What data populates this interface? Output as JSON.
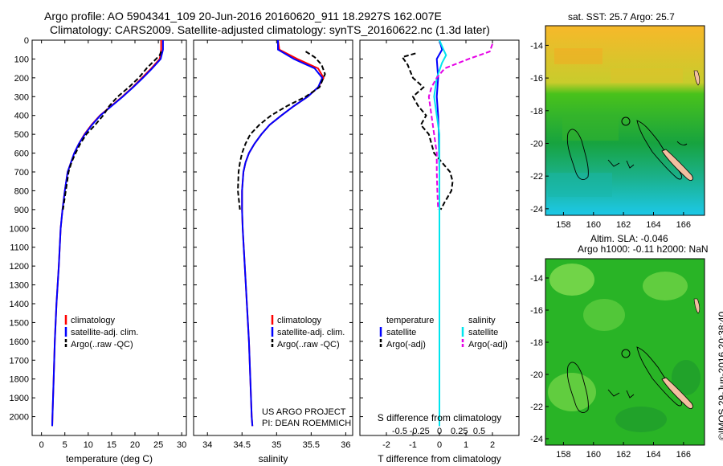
{
  "header": {
    "line1": "Argo profile: AO 5904341_109 20-Jun-2016 20160620_911 18.2927S 162.007E",
    "line2": "Climatology: CARS2009. Satellite-adjusted climatology: synTS_20160622.nc (1.3d later)"
  },
  "credit": "©IMOS 29-Jun-2016 20:38:40",
  "colors": {
    "clim": "#ff0000",
    "sat": "#0000ff",
    "argo": "#000000",
    "sal_sat": "#00e5ee",
    "sal_argo": "#e600e6"
  },
  "chart_data": [
    {
      "type": "line",
      "xlabel": "temperature (deg C)",
      "xlim": [
        -2,
        31
      ],
      "xticks": [
        0,
        5,
        10,
        15,
        20,
        25,
        30
      ],
      "ylim": [
        2100,
        0
      ],
      "yticks": [
        0,
        100,
        200,
        300,
        400,
        500,
        600,
        700,
        800,
        900,
        1000,
        1100,
        1200,
        1300,
        1400,
        1500,
        1600,
        1700,
        1800,
        1900,
        2000
      ],
      "legend": [
        "climatology",
        "satellite-adj. clim.",
        "Argo(..raw -QC)"
      ],
      "series": [
        {
          "name": "climatology",
          "color": "#ff0000",
          "style": "solid",
          "points": [
            [
              25.6,
              0
            ],
            [
              25.6,
              50
            ],
            [
              25.3,
              100
            ],
            [
              23.5,
              150
            ],
            [
              21.5,
              200
            ],
            [
              19.5,
              250
            ],
            [
              17.3,
              300
            ],
            [
              14.9,
              350
            ],
            [
              12.5,
              400
            ],
            [
              10.7,
              450
            ],
            [
              9.2,
              500
            ],
            [
              8,
              550
            ],
            [
              7,
              600
            ],
            [
              6.3,
              650
            ],
            [
              5.6,
              700
            ],
            [
              5.0,
              800
            ],
            [
              4.5,
              900
            ],
            [
              4.1,
              1000
            ],
            [
              3.7,
              1200
            ],
            [
              3.2,
              1400
            ],
            [
              2.85,
              1600
            ],
            [
              2.6,
              1800
            ],
            [
              2.35,
              2000
            ],
            [
              2.3,
              2050
            ]
          ]
        },
        {
          "name": "satellite-adj. clim.",
          "color": "#0000ff",
          "style": "solid",
          "points": [
            [
              26.0,
              0
            ],
            [
              26.0,
              50
            ],
            [
              25.5,
              100
            ],
            [
              23.7,
              150
            ],
            [
              21.7,
              200
            ],
            [
              19.6,
              250
            ],
            [
              17.4,
              300
            ],
            [
              15.0,
              350
            ],
            [
              12.6,
              400
            ],
            [
              10.8,
              450
            ],
            [
              9.3,
              500
            ],
            [
              8,
              550
            ],
            [
              7,
              600
            ],
            [
              6.3,
              650
            ],
            [
              5.6,
              700
            ],
            [
              5.0,
              800
            ],
            [
              4.5,
              900
            ],
            [
              4.1,
              1000
            ],
            [
              3.7,
              1200
            ],
            [
              3.2,
              1400
            ],
            [
              2.85,
              1600
            ],
            [
              2.6,
              1800
            ],
            [
              2.35,
              2000
            ],
            [
              2.3,
              2050
            ]
          ]
        },
        {
          "name": "Argo(..raw -QC)",
          "color": "#000000",
          "style": "dashed",
          "points": [
            [
              25.6,
              60
            ],
            [
              25.3,
              80
            ],
            [
              24.5,
              100
            ],
            [
              22.5,
              150
            ],
            [
              20.8,
              200
            ],
            [
              18.7,
              250
            ],
            [
              16.3,
              300
            ],
            [
              14.5,
              350
            ],
            [
              13.2,
              400
            ],
            [
              11.5,
              450
            ],
            [
              9.6,
              500
            ],
            [
              8.3,
              550
            ],
            [
              7.3,
              600
            ],
            [
              6.4,
              650
            ],
            [
              5.8,
              700
            ],
            [
              5.2,
              800
            ],
            [
              4.6,
              900
            ]
          ]
        }
      ]
    },
    {
      "type": "line",
      "xlabel": "salinity",
      "xlim": [
        33.8,
        36.1
      ],
      "xticks": [
        34,
        34.5,
        35,
        35.5,
        36
      ],
      "ylim": [
        2100,
        0
      ],
      "legend": [
        "climatology",
        "satellite-adj. clim.",
        "Argo(..raw -QC)"
      ],
      "annotation": [
        "US ARGO PROJECT",
        "PI: DEAN ROEMMICH"
      ],
      "series": [
        {
          "name": "climatology",
          "color": "#ff0000",
          "style": "solid",
          "points": [
            [
              35.02,
              0
            ],
            [
              35.04,
              50
            ],
            [
              35.3,
              100
            ],
            [
              35.6,
              150
            ],
            [
              35.68,
              200
            ],
            [
              35.6,
              250
            ],
            [
              35.45,
              300
            ],
            [
              35.25,
              350
            ],
            [
              35.07,
              400
            ],
            [
              34.9,
              450
            ],
            [
              34.78,
              500
            ],
            [
              34.68,
              550
            ],
            [
              34.6,
              600
            ],
            [
              34.55,
              650
            ],
            [
              34.52,
              700
            ],
            [
              34.5,
              800
            ],
            [
              34.5,
              900
            ],
            [
              34.51,
              1000
            ],
            [
              34.54,
              1200
            ],
            [
              34.57,
              1400
            ],
            [
              34.6,
              1600
            ],
            [
              34.62,
              1800
            ],
            [
              34.64,
              2000
            ],
            [
              34.65,
              2050
            ]
          ]
        },
        {
          "name": "satellite-adj. clim.",
          "color": "#0000ff",
          "style": "solid",
          "points": [
            [
              35.02,
              0
            ],
            [
              35.02,
              50
            ],
            [
              35.25,
              100
            ],
            [
              35.55,
              150
            ],
            [
              35.66,
              200
            ],
            [
              35.6,
              250
            ],
            [
              35.45,
              300
            ],
            [
              35.25,
              350
            ],
            [
              35.07,
              400
            ],
            [
              34.9,
              450
            ],
            [
              34.78,
              500
            ],
            [
              34.68,
              550
            ],
            [
              34.6,
              600
            ],
            [
              34.55,
              650
            ],
            [
              34.52,
              700
            ],
            [
              34.5,
              800
            ],
            [
              34.5,
              900
            ],
            [
              34.51,
              1000
            ],
            [
              34.54,
              1200
            ],
            [
              34.57,
              1400
            ],
            [
              34.6,
              1600
            ],
            [
              34.62,
              1800
            ],
            [
              34.64,
              2000
            ],
            [
              34.65,
              2050
            ]
          ]
        },
        {
          "name": "Argo(..raw -QC)",
          "color": "#000000",
          "style": "dashed",
          "points": [
            [
              35.42,
              60
            ],
            [
              35.55,
              90
            ],
            [
              35.65,
              130
            ],
            [
              35.7,
              180
            ],
            [
              35.62,
              250
            ],
            [
              35.42,
              300
            ],
            [
              35.15,
              350
            ],
            [
              34.92,
              400
            ],
            [
              34.75,
              450
            ],
            [
              34.62,
              500
            ],
            [
              34.55,
              550
            ],
            [
              34.5,
              600
            ],
            [
              34.47,
              650
            ],
            [
              34.45,
              700
            ],
            [
              34.44,
              800
            ],
            [
              34.47,
              900
            ]
          ]
        }
      ]
    },
    {
      "type": "line",
      "xlabel": "T difference from climatology",
      "xlabel_top": "S difference from climatology",
      "xlim": [
        -3,
        3
      ],
      "xticks": [
        -2,
        -1,
        0,
        1,
        2
      ],
      "xticks_top": [
        -0.5,
        -0.25,
        0,
        0.25,
        0.5
      ],
      "ylim": [
        2100,
        0
      ],
      "legend": [
        "temperature",
        "satellite",
        "Argo(-adj)",
        "salinity",
        "satellite",
        "Argo(-adj)"
      ],
      "series": [
        {
          "name": "satellite",
          "color": "#0000ff",
          "style": "solid",
          "points": [
            [
              0,
              0
            ],
            [
              0.1,
              50
            ],
            [
              -0.1,
              100
            ],
            [
              -0.05,
              200
            ],
            [
              -0.1,
              300
            ],
            [
              -0.05,
              400
            ],
            [
              -0.02,
              500
            ],
            [
              0,
              700
            ],
            [
              0,
              1000
            ],
            [
              0,
              1500
            ],
            [
              0,
              2000
            ],
            [
              0,
              2050
            ]
          ]
        },
        {
          "name": "Argo(-adj)",
          "color": "#000000",
          "style": "dashed",
          "points": [
            [
              -0.9,
              70
            ],
            [
              -1.4,
              90
            ],
            [
              -1.2,
              130
            ],
            [
              -1.0,
              200
            ],
            [
              -0.6,
              250
            ],
            [
              -1.0,
              300
            ],
            [
              -0.8,
              350
            ],
            [
              -0.5,
              400
            ],
            [
              -0.7,
              450
            ],
            [
              -0.4,
              500
            ],
            [
              -0.3,
              550
            ],
            [
              -0.2,
              600
            ],
            [
              0.1,
              650
            ],
            [
              0.4,
              700
            ],
            [
              0.5,
              750
            ],
            [
              0.45,
              800
            ],
            [
              0.2,
              860
            ],
            [
              0.05,
              900
            ]
          ]
        },
        {
          "name": "satellite",
          "color": "#00e5ee",
          "style": "solid",
          "points": [
            [
              0,
              0
            ],
            [
              0.15,
              50
            ],
            [
              0.25,
              80
            ],
            [
              0.1,
              120
            ],
            [
              -0.1,
              200
            ],
            [
              -0.2,
              300
            ],
            [
              -0.1,
              400
            ],
            [
              0,
              500
            ],
            [
              0,
              700
            ],
            [
              0,
              1000
            ],
            [
              0,
              1500
            ],
            [
              0,
              2000
            ],
            [
              0,
              2050
            ]
          ]
        },
        {
          "name": "Argo(-adj)",
          "color": "#e600e6",
          "style": "dashed",
          "points": [
            [
              2.0,
              20
            ],
            [
              1.9,
              60
            ],
            [
              1.1,
              100
            ],
            [
              0.2,
              150
            ],
            [
              -0.1,
              200
            ],
            [
              -0.3,
              250
            ],
            [
              -0.4,
              300
            ],
            [
              -0.3,
              400
            ],
            [
              -0.2,
              500
            ],
            [
              -0.1,
              600
            ],
            [
              -0.1,
              700
            ],
            [
              -0.08,
              800
            ],
            [
              -0.05,
              900
            ]
          ]
        }
      ]
    }
  ],
  "maps": {
    "xticks": [
      158,
      160,
      162,
      164,
      166
    ],
    "yticks": [
      -14,
      -16,
      -18,
      -20,
      -22,
      -24
    ],
    "sst_title": "sat. SST: 25.7  Argo: 25.7",
    "sla_title1": "Altim. SLA: -0.046",
    "sla_title2": "Argo h1000: -0.11  h2000: NaN"
  }
}
